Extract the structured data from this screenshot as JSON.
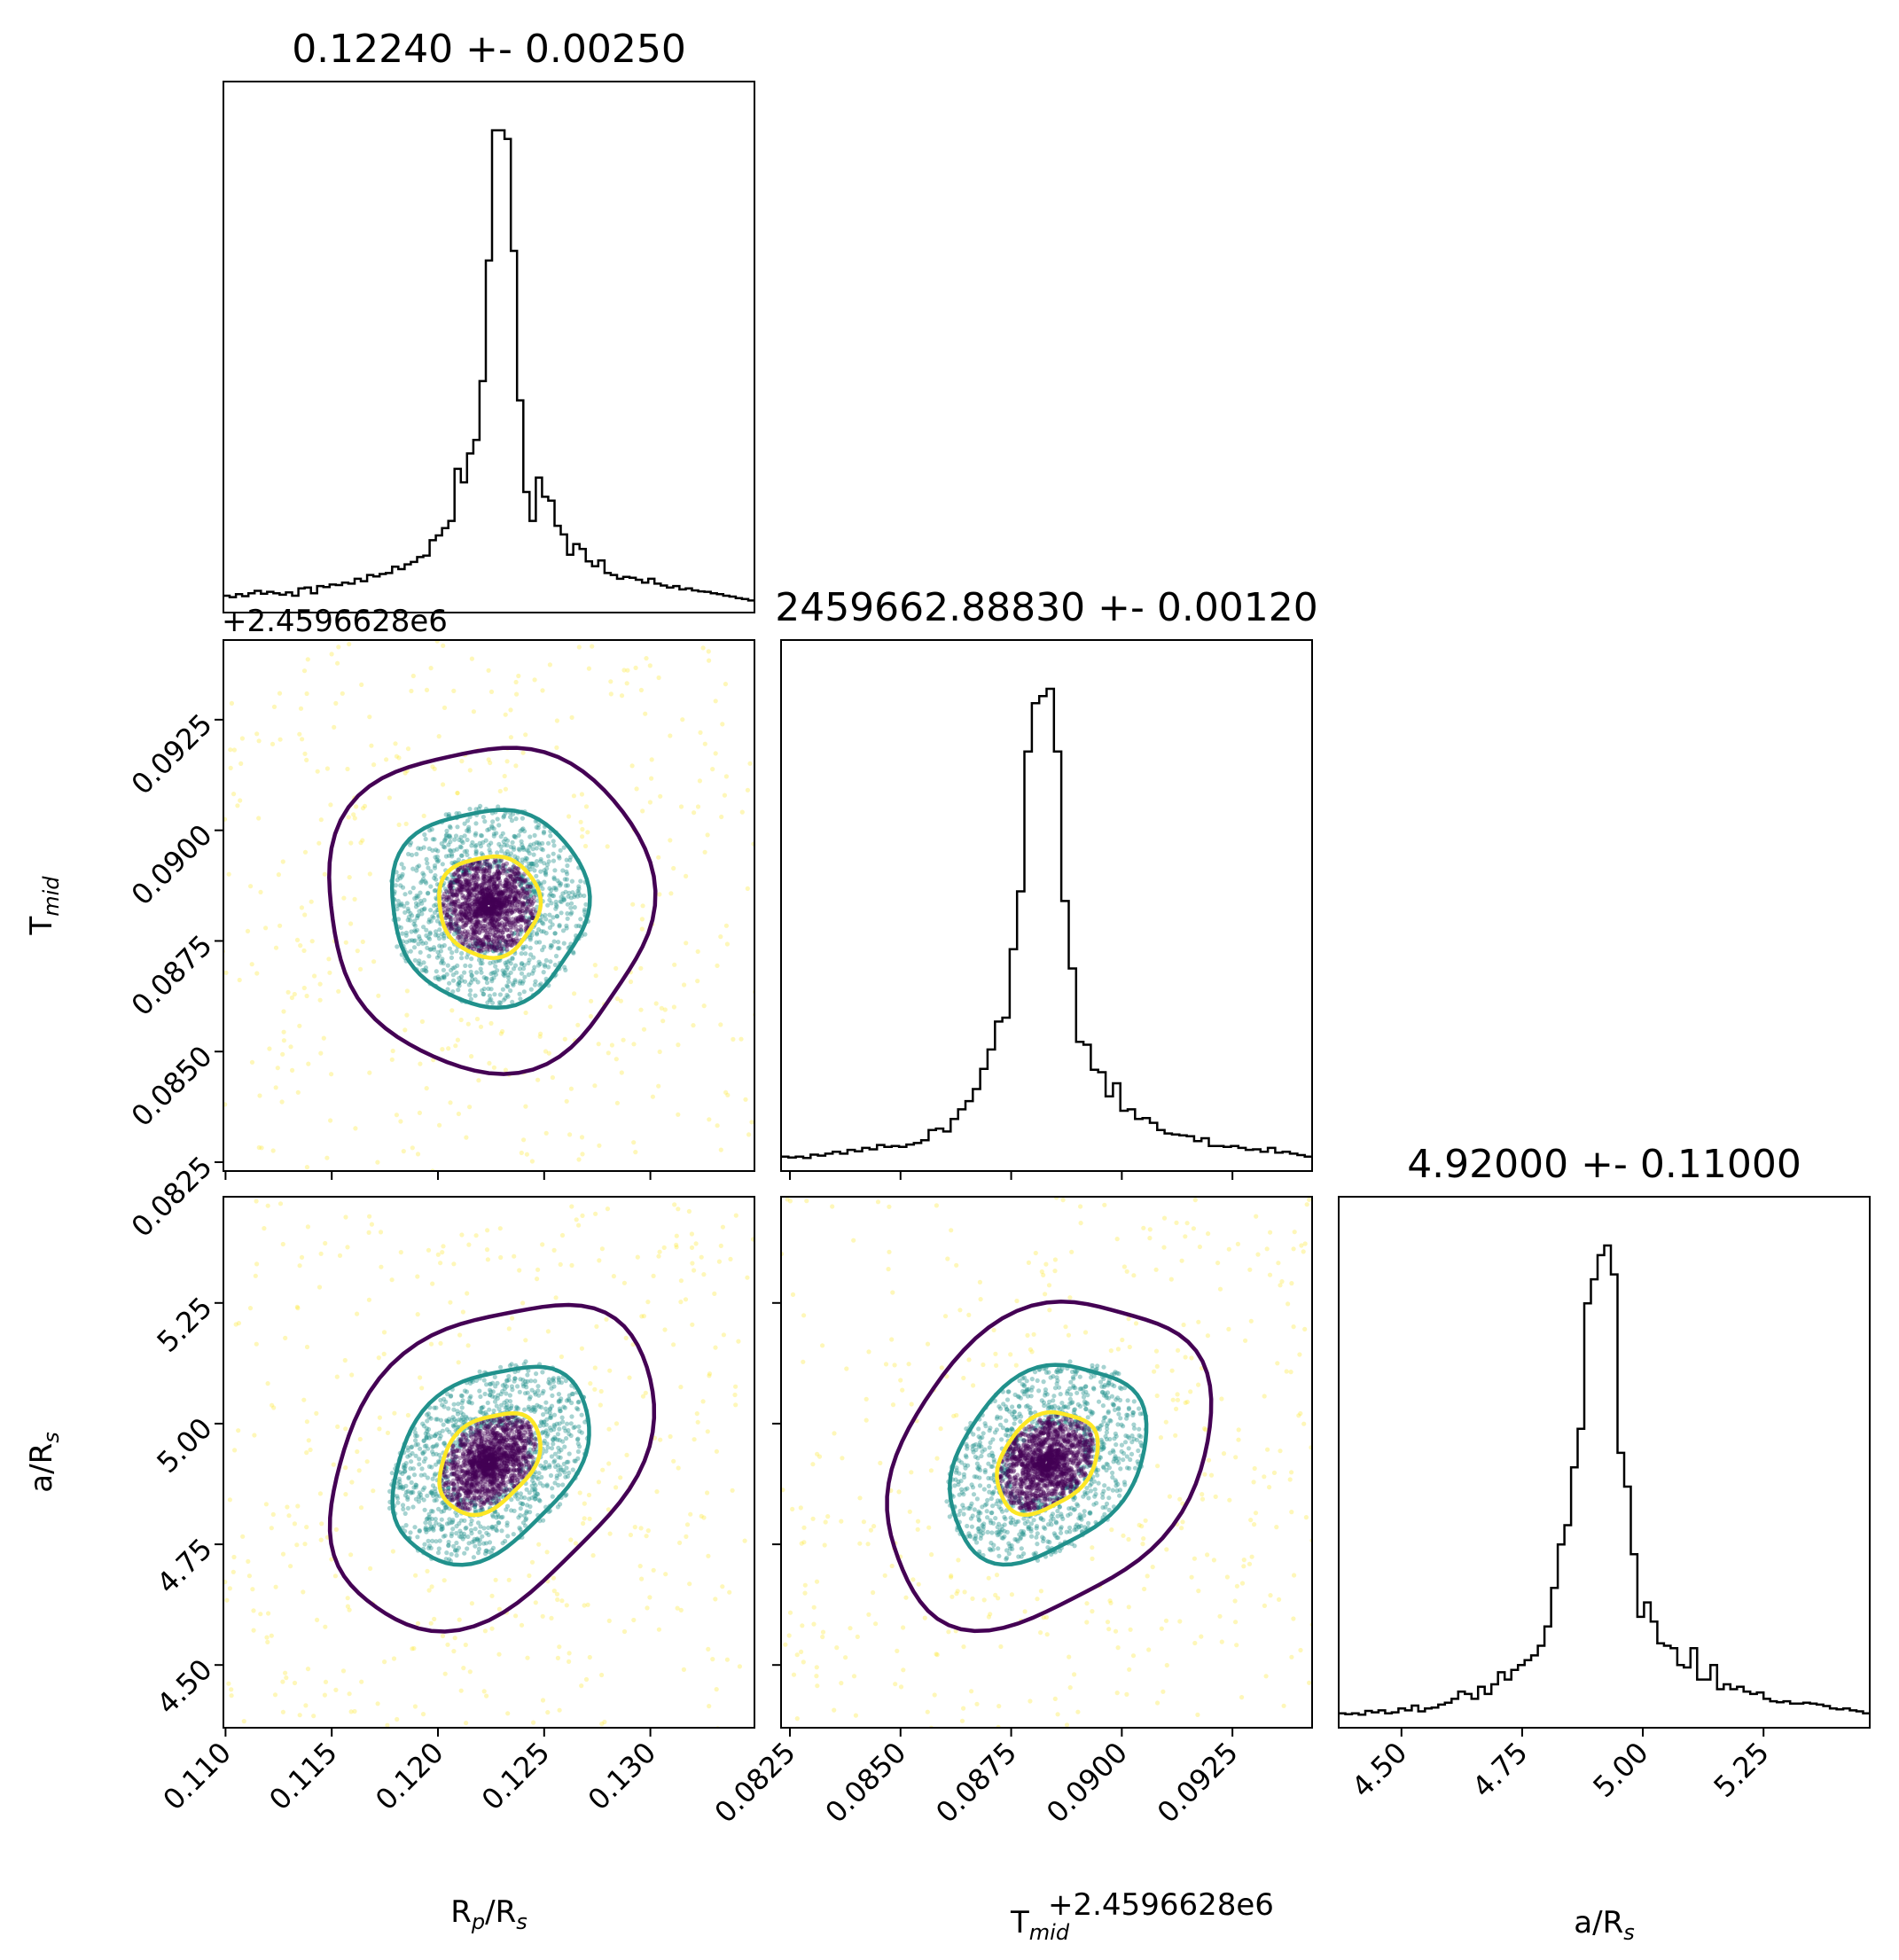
{
  "chart_data": {
    "type": "corner",
    "parameters": [
      {
        "key": "rp",
        "xlabel": "R_p/R_s",
        "ylabel": "",
        "title": "0.12240 +- 0.00250",
        "median": 0.1224,
        "sigma": 0.0025,
        "range": [
          0.1099,
          0.1349
        ],
        "ticks": [
          0.11,
          0.115,
          0.12,
          0.125,
          0.13
        ],
        "tick_labels": [
          "0.110",
          "0.115",
          "0.120",
          "0.125",
          "0.130"
        ]
      },
      {
        "key": "tmid",
        "xlabel": "T_mid",
        "ylabel": "T_mid",
        "title": "2459662.88830 +- 0.00120",
        "median": 0.0883,
        "sigma": 0.0012,
        "range": [
          0.0823,
          0.0943
        ],
        "offset_text": "+2.4596628e6",
        "ticks": [
          0.0825,
          0.085,
          0.0875,
          0.09,
          0.0925
        ],
        "tick_labels": [
          "0.0825",
          "0.0850",
          "0.0875",
          "0.0900",
          "0.0925"
        ]
      },
      {
        "key": "ars",
        "xlabel": "a/R_s",
        "ylabel": "a/R_s",
        "title": "4.92000 +- 0.11000",
        "median": 4.92,
        "sigma": 0.11,
        "range": [
          4.37,
          5.47
        ],
        "ticks": [
          4.5,
          4.75,
          5.0,
          5.25
        ],
        "tick_labels": [
          "4.50",
          "4.75",
          "5.00",
          "5.25"
        ]
      }
    ],
    "histograms": {
      "rp": [
        0.035,
        0.032,
        0.038,
        0.034,
        0.04,
        0.045,
        0.039,
        0.043,
        0.04,
        0.037,
        0.042,
        0.035,
        0.05,
        0.052,
        0.04,
        0.055,
        0.053,
        0.058,
        0.057,
        0.062,
        0.06,
        0.07,
        0.065,
        0.078,
        0.075,
        0.08,
        0.082,
        0.095,
        0.09,
        0.1,
        0.105,
        0.115,
        0.118,
        0.15,
        0.16,
        0.175,
        0.19,
        0.298,
        0.27,
        0.33,
        0.358,
        0.48,
        0.73,
        1.0,
        1.0,
        0.982,
        0.75,
        0.44,
        0.25,
        0.19,
        0.28,
        0.24,
        0.232,
        0.18,
        0.162,
        0.12,
        0.142,
        0.132,
        0.106,
        0.096,
        0.108,
        0.082,
        0.078,
        0.07,
        0.074,
        0.072,
        0.068,
        0.062,
        0.07,
        0.06,
        0.056,
        0.052,
        0.055,
        0.048,
        0.05,
        0.046,
        0.044,
        0.043,
        0.04,
        0.038,
        0.035,
        0.033,
        0.03,
        0.028,
        0.025
      ],
      "tmid": [
        0.03,
        0.028,
        0.03,
        0.027,
        0.034,
        0.032,
        0.036,
        0.04,
        0.036,
        0.044,
        0.041,
        0.048,
        0.045,
        0.054,
        0.05,
        0.052,
        0.05,
        0.055,
        0.058,
        0.064,
        0.085,
        0.088,
        0.082,
        0.108,
        0.128,
        0.145,
        0.17,
        0.212,
        0.252,
        0.31,
        0.318,
        0.46,
        0.58,
        0.87,
        0.97,
        0.985,
        1.0,
        0.87,
        0.56,
        0.42,
        0.268,
        0.262,
        0.21,
        0.205,
        0.155,
        0.182,
        0.125,
        0.128,
        0.108,
        0.11,
        0.1,
        0.085,
        0.078,
        0.076,
        0.074,
        0.072,
        0.062,
        0.068,
        0.052,
        0.052,
        0.05,
        0.052,
        0.048,
        0.044,
        0.045,
        0.04,
        0.048,
        0.038,
        0.04,
        0.036,
        0.033,
        0.03
      ],
      "ars": [
        0.03,
        0.028,
        0.03,
        0.027,
        0.035,
        0.032,
        0.036,
        0.03,
        0.032,
        0.04,
        0.036,
        0.046,
        0.034,
        0.04,
        0.042,
        0.048,
        0.052,
        0.06,
        0.075,
        0.07,
        0.06,
        0.085,
        0.07,
        0.09,
        0.115,
        0.1,
        0.12,
        0.13,
        0.14,
        0.15,
        0.17,
        0.21,
        0.29,
        0.38,
        0.42,
        0.54,
        0.62,
        0.88,
        0.93,
        0.98,
        1.0,
        0.94,
        0.57,
        0.5,
        0.36,
        0.23,
        0.26,
        0.22,
        0.175,
        0.17,
        0.165,
        0.13,
        0.125,
        0.165,
        0.1,
        0.1,
        0.13,
        0.08,
        0.09,
        0.08,
        0.085,
        0.075,
        0.07,
        0.073,
        0.06,
        0.055,
        0.053,
        0.055,
        0.05,
        0.05,
        0.052,
        0.05,
        0.048,
        0.045,
        0.04,
        0.038,
        0.04,
        0.036,
        0.034,
        0.03
      ]
    },
    "contour_levels": [
      {
        "level": "inner",
        "color": "#440154"
      },
      {
        "level": "middle",
        "color": "#21918c"
      },
      {
        "level": "outer",
        "color": "#fde725"
      }
    ],
    "grid": false,
    "legend": "none"
  }
}
